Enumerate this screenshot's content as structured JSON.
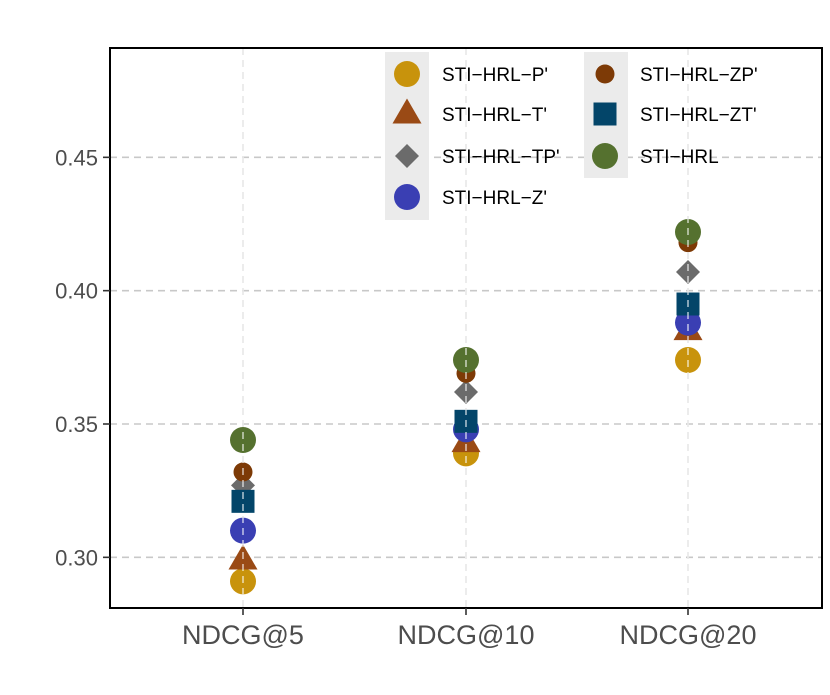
{
  "chart_data": {
    "type": "scatter",
    "title": "",
    "xlabel": "",
    "ylabel": "",
    "categories": [
      "NDCG@5",
      "NDCG@10",
      "NDCG@20"
    ],
    "ylim": [
      0.281,
      0.491
    ],
    "yticks": [
      0.3,
      0.35,
      0.4,
      0.45
    ],
    "ytick_labels": [
      "0.30",
      "0.35",
      "0.40",
      "0.45"
    ],
    "grid": true,
    "legend_position": "top-center",
    "series": [
      {
        "name": "STI−HRL−P'",
        "marker": "circle",
        "color": "#C8930C",
        "values": [
          0.291,
          0.339,
          0.374
        ]
      },
      {
        "name": "STI−HRL−T'",
        "marker": "triangle",
        "color": "#9A4A15",
        "values": [
          0.299,
          0.343,
          0.385
        ]
      },
      {
        "name": "STI−HRL−TP'",
        "marker": "diamond",
        "color": "#6B6B6B",
        "values": [
          0.327,
          0.362,
          0.407
        ]
      },
      {
        "name": "STI−HRL−Z'",
        "marker": "circle",
        "color": "#3A3FB3",
        "values": [
          0.31,
          0.348,
          0.388
        ]
      },
      {
        "name": "STI−HRL−ZP'",
        "marker": "circle-small",
        "color": "#7D3A06",
        "values": [
          0.332,
          0.369,
          0.418
        ]
      },
      {
        "name": "STI−HRL−ZT'",
        "marker": "square",
        "color": "#034569",
        "values": [
          0.321,
          0.351,
          0.395
        ]
      },
      {
        "name": "STI−HRL",
        "marker": "circle",
        "color": "#55712F",
        "values": [
          0.344,
          0.374,
          0.422
        ]
      }
    ]
  }
}
